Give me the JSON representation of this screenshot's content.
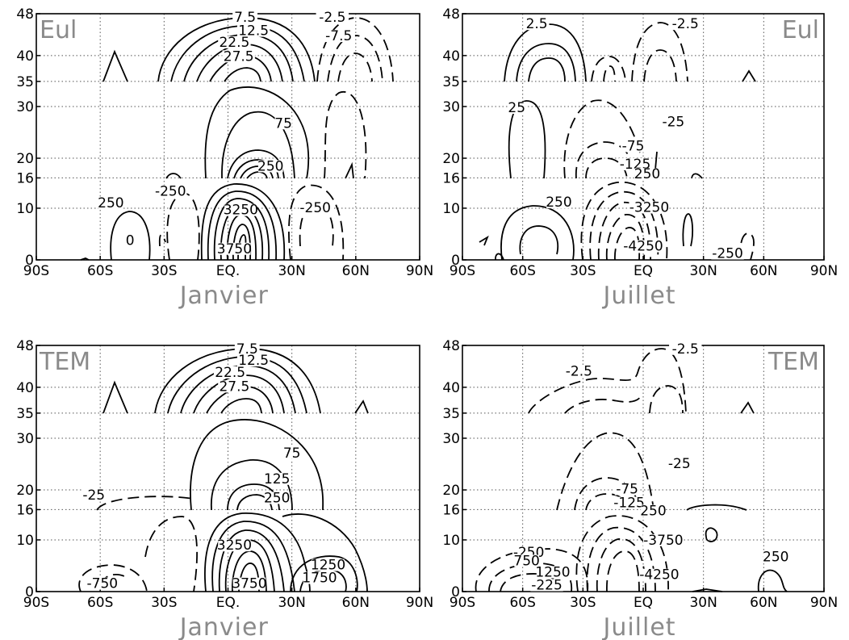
{
  "colors": {
    "corner_label": "#8a8a8a",
    "month_label": "#8a8a8a",
    "line": "#000000",
    "grid": "#555555"
  },
  "chart_data": [
    {
      "type": "contour",
      "panel": "top-left",
      "corner_label": "Eul",
      "month_label": "Janvier",
      "grid": true,
      "x_ticks": [
        "90S",
        "60S",
        "30S",
        "EQ.",
        "30N",
        "60N",
        "90N"
      ],
      "y_ticks": [
        "0",
        "10",
        "16",
        "20",
        "30",
        "35",
        "40",
        "48"
      ],
      "xlim": [
        -90,
        90
      ],
      "ylim": [
        0,
        48
      ],
      "contour_labels": [
        {
          "text": "7.5",
          "lat": 8,
          "z": 46.8
        },
        {
          "text": "12.5",
          "lat": 12,
          "z": 44.2
        },
        {
          "text": "22.5",
          "lat": 3,
          "z": 42
        },
        {
          "text": "27.5",
          "lat": 5,
          "z": 39.3
        },
        {
          "text": "-2.5",
          "lat": 49,
          "z": 46.8
        },
        {
          "text": "-7.5",
          "lat": 52,
          "z": 43.2
        },
        {
          "text": "75",
          "lat": 26,
          "z": 26.2
        },
        {
          "text": "250",
          "lat": 20,
          "z": 17.8
        },
        {
          "text": "250",
          "lat": -55,
          "z": 10.5
        },
        {
          "text": "-250",
          "lat": -27,
          "z": 12.8
        },
        {
          "text": "-250",
          "lat": 41,
          "z": 9.5
        },
        {
          "text": "3250",
          "lat": 6,
          "z": 9.1
        },
        {
          "text": "3750",
          "lat": 3,
          "z": 1.6
        },
        {
          "text": "0",
          "lat": -46,
          "z": 3.2
        }
      ]
    },
    {
      "type": "contour",
      "panel": "top-right",
      "corner_label": "Eul",
      "month_label": "Juillet",
      "grid": true,
      "x_ticks": [
        "90S",
        "60S",
        "30S",
        "EQ",
        "30N",
        "60N",
        "90N"
      ],
      "y_ticks": [
        "0",
        "10",
        "16",
        "20",
        "30",
        "35",
        "40",
        "48"
      ],
      "xlim": [
        -90,
        90
      ],
      "ylim": [
        0,
        48
      ],
      "contour_labels": [
        {
          "text": "2.5",
          "lat": -53,
          "z": 45.5
        },
        {
          "text": "-2.5",
          "lat": 21,
          "z": 45.5
        },
        {
          "text": "25",
          "lat": -63,
          "z": 29.2
        },
        {
          "text": "-25",
          "lat": 15,
          "z": 26.5
        },
        {
          "text": "-75",
          "lat": -5,
          "z": 21.8
        },
        {
          "text": "-125",
          "lat": -4,
          "z": 18.2
        },
        {
          "text": "250",
          "lat": 2,
          "z": 16.2
        },
        {
          "text": "250",
          "lat": -42,
          "z": 10.6
        },
        {
          "text": "-3250",
          "lat": 3,
          "z": 9.6
        },
        {
          "text": "-4250",
          "lat": 0,
          "z": 2.1
        },
        {
          "text": "-250",
          "lat": 42,
          "z": 0.7
        }
      ]
    },
    {
      "type": "contour",
      "panel": "bottom-left",
      "corner_label": "TEM",
      "month_label": "Janvier",
      "grid": true,
      "x_ticks": [
        "90S",
        "60S",
        "30S",
        "EQ.",
        "30N",
        "60N",
        "90N"
      ],
      "y_ticks": [
        "0",
        "10",
        "16",
        "20",
        "30",
        "35",
        "40",
        "48"
      ],
      "xlim": [
        -90,
        90
      ],
      "ylim": [
        0,
        48
      ],
      "contour_labels": [
        {
          "text": "7.5",
          "lat": 9,
          "z": 46.8
        },
        {
          "text": "12.5",
          "lat": 12,
          "z": 44.6
        },
        {
          "text": "22.5",
          "lat": 1,
          "z": 42.3
        },
        {
          "text": "27.5",
          "lat": 3,
          "z": 39.6
        },
        {
          "text": "75",
          "lat": 30,
          "z": 26.6
        },
        {
          "text": "125",
          "lat": 23,
          "z": 21.6
        },
        {
          "text": "250",
          "lat": 23,
          "z": 17.8
        },
        {
          "text": "-25",
          "lat": -63,
          "z": 18.4
        },
        {
          "text": "3250",
          "lat": 3,
          "z": 8.4
        },
        {
          "text": "1250",
          "lat": 47,
          "z": 4.6
        },
        {
          "text": "1750",
          "lat": 43,
          "z": 2.1
        },
        {
          "text": "3750",
          "lat": 10,
          "z": 1.0
        },
        {
          "text": "-750",
          "lat": -59,
          "z": 1.0
        }
      ]
    },
    {
      "type": "contour",
      "panel": "bottom-right",
      "corner_label": "TEM",
      "month_label": "Juillet",
      "grid": true,
      "x_ticks": [
        "90S",
        "60S",
        "30S",
        "EQ",
        "30N",
        "60N",
        "90N"
      ],
      "y_ticks": [
        "0",
        "10",
        "16",
        "20",
        "30",
        "35",
        "40",
        "48"
      ],
      "xlim": [
        -90,
        90
      ],
      "ylim": [
        0,
        48
      ],
      "contour_labels": [
        {
          "text": "-2.5",
          "lat": 21,
          "z": 46.8
        },
        {
          "text": "-2.5",
          "lat": -32,
          "z": 42.5
        },
        {
          "text": "-25",
          "lat": 18,
          "z": 24.5
        },
        {
          "text": "-75",
          "lat": -8,
          "z": 19.6
        },
        {
          "text": "-125",
          "lat": -7,
          "z": 16.8
        },
        {
          "text": "250",
          "lat": 5,
          "z": 15.2
        },
        {
          "text": "-3750",
          "lat": 10,
          "z": 9.4
        },
        {
          "text": "-4250",
          "lat": 8,
          "z": 2.7
        },
        {
          "text": "250",
          "lat": 66,
          "z": 6.2
        },
        {
          "text": "-250",
          "lat": -57,
          "z": 7.0
        },
        {
          "text": "750",
          "lat": -58,
          "z": 5.4
        },
        {
          "text": "1250",
          "lat": -45,
          "z": 3.2
        },
        {
          "text": "-225",
          "lat": -48,
          "z": 0.7
        }
      ]
    }
  ]
}
